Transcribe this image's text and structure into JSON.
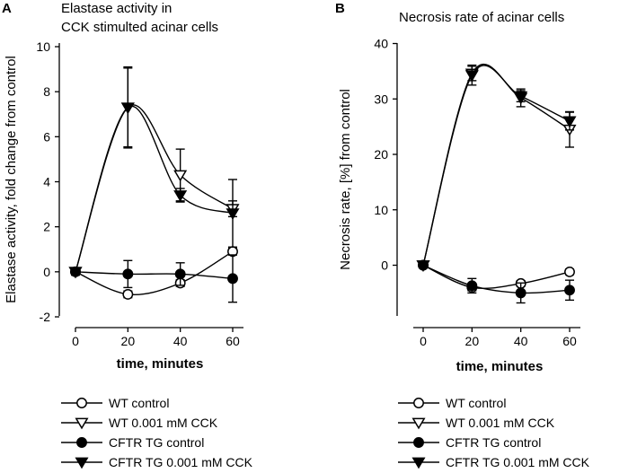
{
  "chart_data": [
    {
      "type": "line",
      "panel": "A",
      "title_lines": [
        "Elastase activity in",
        "CCK stimulted acinar cells"
      ],
      "xlabel": "time, minutes",
      "ylabel": "Elastase activity, fold change from control",
      "x": [
        0,
        20,
        40,
        60
      ],
      "x_ticks": [
        "0",
        "20",
        "40",
        "60"
      ],
      "y_ticks": [
        "-2",
        "0",
        "2",
        "4",
        "6",
        "8",
        "10"
      ],
      "xlim": [
        -8,
        66
      ],
      "ylim": [
        -2,
        10
      ],
      "series": [
        {
          "name": "WT control",
          "marker": "circle-open",
          "values": [
            0,
            -1.0,
            -0.5,
            0.9
          ],
          "err": [
            0.15,
            0.15,
            0.15,
            0.15
          ]
        },
        {
          "name": "WT 0.001 mM CCK",
          "marker": "triangle-open",
          "values": [
            0,
            7.3,
            4.3,
            2.8
          ],
          "err": [
            0.1,
            1.8,
            1.15,
            0.35
          ]
        },
        {
          "name": "CFTR TG control",
          "marker": "circle-filled",
          "values": [
            0,
            -0.1,
            -0.1,
            -0.3
          ],
          "err": [
            0.1,
            0.6,
            0.5,
            1.05
          ]
        },
        {
          "name": "CFTR TG 0.001 mM CCK",
          "marker": "triangle-filled",
          "values": [
            0,
            7.3,
            3.4,
            2.6
          ],
          "err": [
            0.1,
            1.75,
            0.3,
            1.5
          ]
        }
      ]
    },
    {
      "type": "line",
      "panel": "B",
      "title_lines": [
        "Necrosis rate of acinar cells"
      ],
      "xlabel": "time, minutes",
      "ylabel": "Necrosis rate, [%] from control",
      "x": [
        0,
        20,
        40,
        60
      ],
      "x_ticks": [
        "0",
        "20",
        "40",
        "60"
      ],
      "y_ticks": [
        "0",
        "10",
        "20",
        "30",
        "40"
      ],
      "xlim": [
        -8,
        66
      ],
      "ylim": [
        -9,
        40
      ],
      "series": [
        {
          "name": "WT control",
          "marker": "circle-open",
          "values": [
            0,
            -4.0,
            -3.3,
            -1.2
          ],
          "err": [
            0.4,
            0.6,
            0.5,
            0.5
          ]
        },
        {
          "name": "WT 0.001 mM CCK",
          "marker": "triangle-open",
          "values": [
            0,
            34.6,
            30.2,
            24.5
          ],
          "err": [
            0.4,
            1.3,
            1.6,
            3.2
          ]
        },
        {
          "name": "CFTR TG control",
          "marker": "circle-filled",
          "values": [
            0,
            -3.7,
            -5.0,
            -4.5
          ],
          "err": [
            0.4,
            1.3,
            1.8,
            1.8
          ]
        },
        {
          "name": "CFTR TG 0.001 mM CCK",
          "marker": "triangle-filled",
          "values": [
            0,
            34.3,
            30.5,
            26.0
          ],
          "err": [
            0.4,
            1.8,
            1.0,
            1.6
          ]
        }
      ]
    }
  ]
}
